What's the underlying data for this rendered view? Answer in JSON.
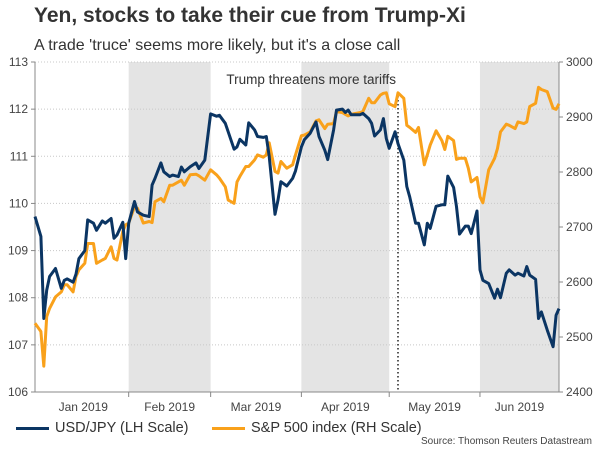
{
  "chart_data": {
    "type": "line",
    "title": "Yen, stocks to take their cue from Trump-Xi",
    "subtitle": "A trade 'truce' seems more likely, but it's a close call",
    "source": "Source: Thomson Reuters Datastream",
    "xlim": [
      "2018-12-31",
      "2019-06-28"
    ],
    "ylim_left": [
      106,
      113
    ],
    "ylim_right": [
      2400,
      3000
    ],
    "yticks_left": [
      "106",
      "107",
      "108",
      "109",
      "110",
      "111",
      "112",
      "113"
    ],
    "yticks_right": [
      "2400",
      "2500",
      "2600",
      "2700",
      "2800",
      "2900",
      "3000"
    ],
    "month_labels": [
      "Jan 2019",
      "Feb 2019",
      "Mar 2019",
      "Apr 2019",
      "May 2019",
      "Jun 2019"
    ],
    "grid": "horizontal dotted",
    "legend_placement": "bottom",
    "shaded_periods": [
      [
        "2019-02-01",
        "2019-03-01"
      ],
      [
        "2019-04-01",
        "2019-05-01"
      ],
      [
        "2019-06-01",
        "2019-06-28"
      ]
    ],
    "annotation": {
      "text": "Trump threatens more tariffs",
      "date": "2019-05-04"
    },
    "colors": {
      "usdjpy": "#0b3563",
      "spx": "#f9a11b",
      "shade": "#e4e4e4"
    },
    "dates": [
      "2018-12-31",
      "2019-01-02",
      "2019-01-03",
      "2019-01-04",
      "2019-01-05",
      "2019-01-07",
      "2019-01-09",
      "2019-01-10",
      "2019-01-11",
      "2019-01-13",
      "2019-01-14",
      "2019-01-15",
      "2019-01-17",
      "2019-01-18",
      "2019-01-20",
      "2019-01-21",
      "2019-01-23",
      "2019-01-24",
      "2019-01-26",
      "2019-01-27",
      "2019-01-28",
      "2019-01-30",
      "2019-01-31",
      "2019-02-01",
      "2019-02-03",
      "2019-02-04",
      "2019-02-06",
      "2019-02-08",
      "2019-02-09",
      "2019-02-10",
      "2019-02-12",
      "2019-02-13",
      "2019-02-15",
      "2019-02-16",
      "2019-02-18",
      "2019-02-19",
      "2019-02-20",
      "2019-02-22",
      "2019-02-24",
      "2019-02-25",
      "2019-02-27",
      "2019-03-01",
      "2019-03-03",
      "2019-03-04",
      "2019-03-06",
      "2019-03-07",
      "2019-03-09",
      "2019-03-10",
      "2019-03-11",
      "2019-03-13",
      "2019-03-14",
      "2019-03-16",
      "2019-03-17",
      "2019-03-19",
      "2019-03-20",
      "2019-03-21",
      "2019-03-23",
      "2019-03-24",
      "2019-03-25",
      "2019-03-27",
      "2019-03-29",
      "2019-03-30",
      "2019-04-01",
      "2019-04-02",
      "2019-04-04",
      "2019-04-06",
      "2019-04-07",
      "2019-04-09",
      "2019-04-10",
      "2019-04-12",
      "2019-04-13",
      "2019-04-15",
      "2019-04-16",
      "2019-04-17",
      "2019-04-18",
      "2019-04-19",
      "2019-04-21",
      "2019-04-22",
      "2019-04-24",
      "2019-04-25",
      "2019-04-26",
      "2019-04-28",
      "2019-04-29",
      "2019-04-30",
      "2019-05-01",
      "2019-05-03",
      "2019-05-04",
      "2019-05-06",
      "2019-05-07",
      "2019-05-08",
      "2019-05-10",
      "2019-05-11",
      "2019-05-13",
      "2019-05-14",
      "2019-05-15",
      "2019-05-17",
      "2019-05-19",
      "2019-05-20",
      "2019-05-21",
      "2019-05-23",
      "2019-05-24",
      "2019-05-25",
      "2019-05-27",
      "2019-05-28",
      "2019-05-29",
      "2019-05-31",
      "2019-06-01",
      "2019-06-02",
      "2019-06-04",
      "2019-06-06",
      "2019-06-07",
      "2019-06-08",
      "2019-06-10",
      "2019-06-11",
      "2019-06-13",
      "2019-06-14",
      "2019-06-16",
      "2019-06-17",
      "2019-06-18",
      "2019-06-20",
      "2019-06-21",
      "2019-06-22",
      "2019-06-24",
      "2019-06-26",
      "2019-06-27",
      "2019-06-28"
    ],
    "series": [
      {
        "name": "USD/JPY (LH Scale)",
        "axis": "left",
        "values": [
          109.72,
          109.3,
          107.56,
          108.16,
          108.45,
          108.62,
          108.2,
          108.37,
          108.4,
          108.33,
          108.5,
          108.83,
          109.0,
          109.65,
          109.58,
          109.43,
          109.63,
          109.58,
          109.68,
          109.26,
          109.33,
          109.6,
          108.83,
          109.58,
          110.04,
          109.82,
          109.75,
          109.72,
          110.39,
          110.53,
          110.86,
          110.67,
          110.57,
          110.6,
          110.57,
          110.77,
          110.67,
          110.78,
          110.86,
          110.74,
          110.92,
          111.9,
          111.85,
          111.87,
          111.7,
          111.52,
          111.15,
          111.2,
          111.36,
          111.24,
          111.71,
          111.56,
          111.42,
          111.4,
          111.42,
          111.0,
          109.77,
          110.07,
          110.46,
          110.37,
          110.53,
          110.69,
          111.2,
          111.35,
          111.49,
          111.73,
          111.42,
          111.13,
          110.93,
          111.56,
          111.98,
          112.0,
          111.93,
          111.98,
          111.88,
          111.88,
          111.88,
          111.91,
          111.8,
          111.7,
          111.43,
          111.56,
          111.8,
          111.38,
          111.17,
          111.52,
          111.27,
          110.92,
          110.36,
          110.14,
          109.58,
          109.58,
          109.12,
          109.58,
          109.47,
          109.94,
          109.97,
          109.97,
          110.58,
          110.34,
          109.93,
          109.35,
          109.52,
          109.52,
          109.36,
          109.84,
          108.59,
          108.37,
          108.3,
          107.99,
          108.18,
          108.0,
          108.52,
          108.59,
          108.48,
          108.52,
          108.46,
          108.66,
          108.48,
          108.39,
          107.56,
          107.7,
          107.31,
          106.96,
          107.63,
          107.77
        ]
      },
      {
        "name": "S&P 500 index (RH Scale)",
        "axis": "right",
        "values": [
          2525,
          2510,
          2447,
          2537,
          2552,
          2573,
          2582,
          2595,
          2595,
          2582,
          2610,
          2622,
          2634,
          2670,
          2670,
          2634,
          2640,
          2643,
          2664,
          2643,
          2640,
          2692,
          2704,
          2707,
          2737,
          2734,
          2707,
          2710,
          2708,
          2746,
          2752,
          2746,
          2776,
          2776,
          2782,
          2785,
          2776,
          2795,
          2796,
          2793,
          2785,
          2804,
          2795,
          2789,
          2773,
          2749,
          2743,
          2782,
          2792,
          2810,
          2810,
          2822,
          2831,
          2827,
          2831,
          2853,
          2801,
          2798,
          2819,
          2807,
          2813,
          2831,
          2866,
          2867,
          2873,
          2893,
          2895,
          2879,
          2887,
          2888,
          2910,
          2908,
          2905,
          2902,
          2905,
          2906,
          2908,
          2910,
          2934,
          2926,
          2926,
          2940,
          2943,
          2944,
          2924,
          2919,
          2944,
          2934,
          2885,
          2881,
          2872,
          2881,
          2813,
          2831,
          2849,
          2875,
          2857,
          2841,
          2865,
          2857,
          2823,
          2825,
          2825,
          2807,
          2782,
          2790,
          2755,
          2744,
          2804,
          2825,
          2843,
          2873,
          2887,
          2885,
          2879,
          2891,
          2888,
          2891,
          2919,
          2925,
          2954,
          2950,
          2946,
          2916,
          2914,
          2924
        ]
      }
    ]
  }
}
